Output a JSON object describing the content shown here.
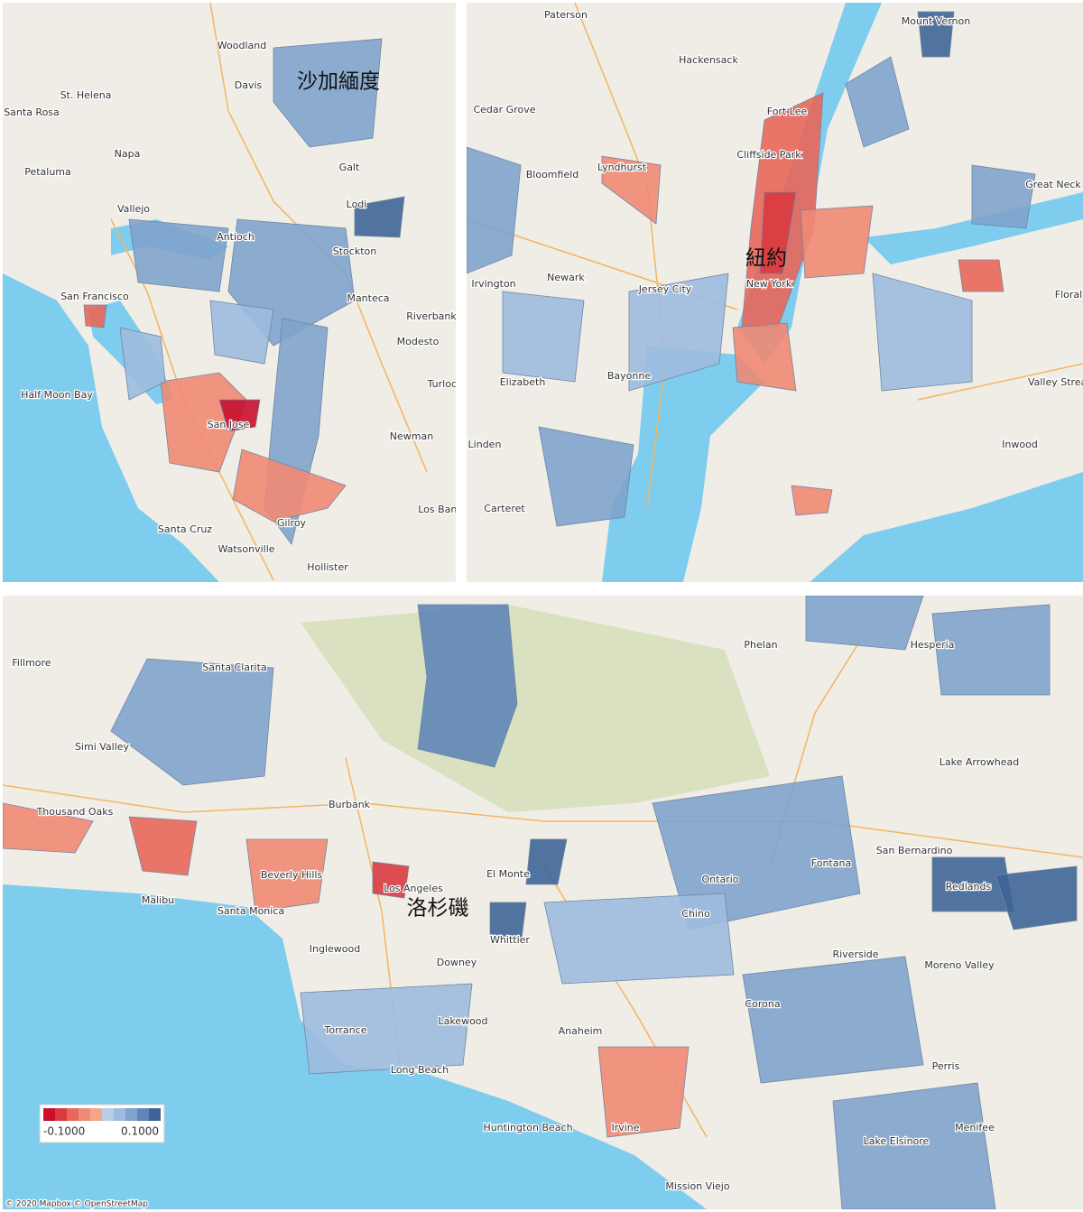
{
  "maps": [
    {
      "label": "沙加緬度",
      "places": [
        "Woodland",
        "Davis",
        "St. Helena",
        "Santa Rosa",
        "Napa",
        "Petaluma",
        "Vallejo",
        "Antioch",
        "Stockton",
        "Lodi",
        "Galt",
        "San Francisco",
        "Manteca",
        "Riverbank",
        "Modesto",
        "Half Moon Bay",
        "San Jose",
        "Newman",
        "Turlock",
        "Santa Cruz",
        "Watsonville",
        "Gilroy",
        "Hollister",
        "Los Banos"
      ],
      "regions": [
        0.06,
        0.09,
        0.05,
        0.055,
        0.04,
        -0.04,
        -0.09,
        -0.03,
        -0.06,
        0.03,
        0.035
      ]
    },
    {
      "label": "紐約",
      "places": [
        "Paterson",
        "Hackensack",
        "Cedar Grove",
        "Fort Lee",
        "Cliffside Park",
        "Mount Vernon",
        "Great Neck",
        "Lyndhurst",
        "Bloomfield",
        "Newark",
        "Irvington",
        "Jersey City",
        "New York",
        "Floral",
        "Elizabeth",
        "Bayonne",
        "Linden",
        "Carteret",
        "Valley Stream",
        "Inwood"
      ],
      "regions": [
        -0.05,
        -0.07,
        -0.04,
        -0.035,
        -0.03,
        -0.045,
        -0.04,
        0.045,
        0.05,
        0.04,
        0.03,
        0.035,
        0.09,
        0.04,
        0.03
      ]
    },
    {
      "label": "洛杉磯",
      "places": [
        "Fillmore",
        "Santa Clarita",
        "Simi Valley",
        "Thousand Oaks",
        "Malibu",
        "Santa Monica",
        "Beverly Hills",
        "Burbank",
        "Los Angeles",
        "El Monte",
        "Whittier",
        "Downey",
        "Inglewood",
        "Torrance",
        "Lakewood",
        "Long Beach",
        "Anaheim",
        "Huntington Beach",
        "Irvine",
        "Mission Viejo",
        "Ontario",
        "Chino",
        "Fontana",
        "San Bernardino",
        "Redlands",
        "Riverside",
        "Moreno Valley",
        "Corona",
        "Perris",
        "Menifee",
        "Lake Elsinore",
        "Hesperia",
        "Phelan",
        "Lake Arrowhead"
      ],
      "regions": [
        0.07,
        -0.06,
        -0.025,
        0.04,
        -0.035,
        -0.07,
        0.08,
        0.09,
        0.05,
        0.09,
        0.09,
        0.06,
        0.055,
        0.04,
        -0.03,
        0.035,
        0.06,
        0.03
      ]
    }
  ],
  "legend": {
    "colors": [
      "#c8102e",
      "#d93a3f",
      "#e8675a",
      "#f08a74",
      "#f4a58a",
      "#b9cde6",
      "#9dbbde",
      "#7fa3cc",
      "#5e86b6",
      "#3e6597"
    ],
    "ticks": [
      {
        "value": -0.1,
        "label": "-0.1000"
      },
      {
        "value": 0.1,
        "label": "0.1000"
      }
    ]
  },
  "attribution": "© 2020 Mapbox © OpenStreetMap"
}
